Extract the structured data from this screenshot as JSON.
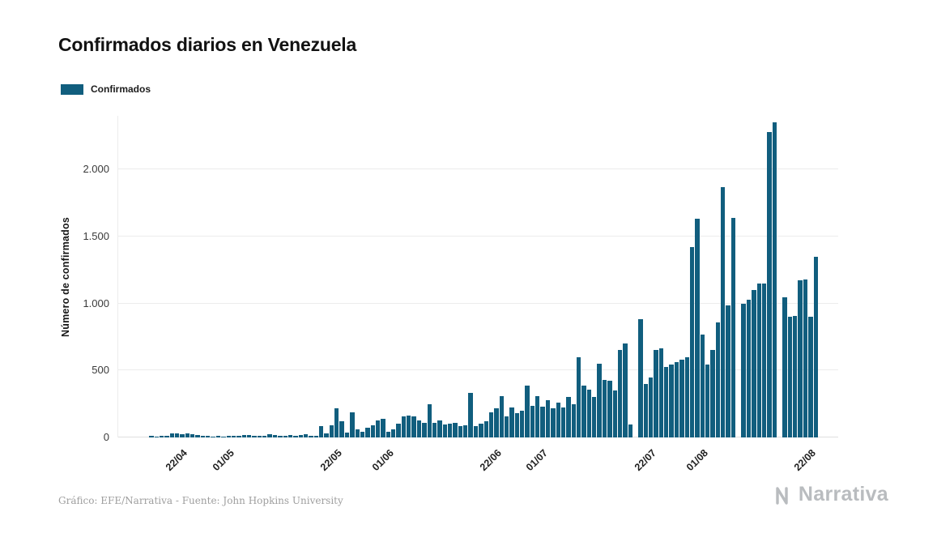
{
  "header": {
    "title": "Confirmados diarios en Venezuela"
  },
  "chart_data": {
    "type": "bar",
    "title": "Confirmados diarios en Venezuela",
    "series_name": "Confirmados",
    "xlabel": "",
    "ylabel": "Número de confirmados",
    "bar_color": "#115e7e",
    "background": "#ffffff",
    "grid": "horizontal",
    "legend_position": "top-left",
    "ylim": [
      0,
      2400
    ],
    "y_ticks": [
      {
        "value": 0,
        "label": "0"
      },
      {
        "value": 500,
        "label": "500"
      },
      {
        "value": 1000,
        "label": "1.000"
      },
      {
        "value": 1500,
        "label": "1.500"
      },
      {
        "value": 2000,
        "label": "2.000"
      }
    ],
    "x_axis": {
      "total_slots": 140,
      "first_bar_slot": 6,
      "ticks": [
        {
          "slot": 12,
          "label": "22/04"
        },
        {
          "slot": 21,
          "label": "01/05"
        },
        {
          "slot": 42,
          "label": "22/05"
        },
        {
          "slot": 52,
          "label": "01/06"
        },
        {
          "slot": 73,
          "label": "22/06"
        },
        {
          "slot": 82,
          "label": "01/07"
        },
        {
          "slot": 103,
          "label": "22/07"
        },
        {
          "slot": 113,
          "label": "01/08"
        },
        {
          "slot": 134,
          "label": "22/08"
        }
      ]
    },
    "values": [
      12,
      8,
      10,
      15,
      30,
      33,
      25,
      28,
      25,
      18,
      12,
      10,
      8,
      12,
      6,
      10,
      15,
      12,
      18,
      20,
      12,
      10,
      15,
      22,
      18,
      12,
      15,
      20,
      14,
      18,
      22,
      15,
      12,
      85,
      30,
      90,
      215,
      120,
      35,
      185,
      60,
      45,
      75,
      90,
      130,
      140,
      45,
      60,
      100,
      155,
      165,
      160,
      130,
      110,
      245,
      110,
      125,
      95,
      100,
      110,
      85,
      90,
      330,
      85,
      100,
      120,
      190,
      215,
      310,
      160,
      225,
      180,
      200,
      390,
      235,
      310,
      230,
      280,
      215,
      260,
      225,
      300,
      245,
      600,
      390,
      355,
      300,
      550,
      430,
      425,
      350,
      650,
      700,
      95,
      0,
      880,
      400,
      450,
      655,
      665,
      525,
      545,
      560,
      580,
      600,
      1420,
      1630,
      765,
      545,
      650,
      860,
      1870,
      985,
      1640,
      0,
      1000,
      1030,
      1100,
      1150,
      1150,
      2280,
      2350,
      0,
      1045,
      900,
      905,
      1170,
      1180,
      900,
      1350
    ]
  },
  "footer": {
    "credit": "Gráfico: EFE/Narrativa - Fuente: John Hopkins University",
    "brand": "Narrativa"
  }
}
